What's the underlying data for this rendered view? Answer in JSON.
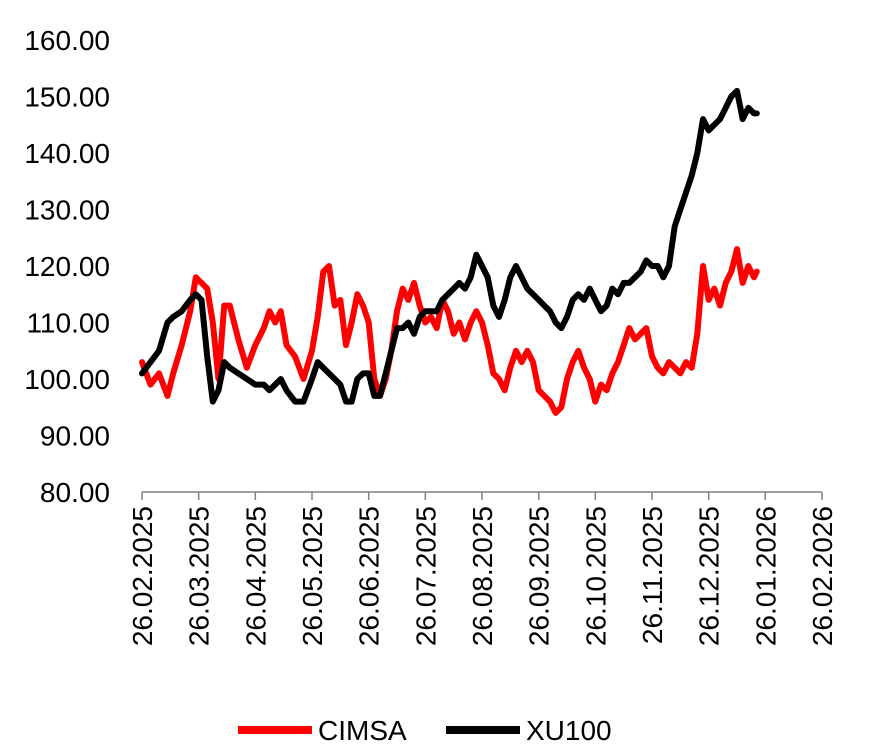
{
  "chart_data": {
    "type": "line",
    "title": "",
    "xlabel": "",
    "ylabel": "",
    "ylim": [
      80,
      160
    ],
    "y_ticks": [
      "80.00",
      "90.00",
      "100.00",
      "110.00",
      "120.00",
      "130.00",
      "140.00",
      "150.00",
      "160.00"
    ],
    "x_ticks": [
      "26.02.2025",
      "26.03.2025",
      "26.04.2025",
      "26.05.2025",
      "26.06.2025",
      "26.07.2025",
      "26.08.2025",
      "26.09.2025",
      "26.10.2025",
      "26.11.2025",
      "26.12.2025",
      "26.01.2026",
      "26.02.2026"
    ],
    "grid": false,
    "legend_position": "bottom",
    "series": [
      {
        "name": "CIMSA",
        "color": "#ff0000",
        "points": [
          [
            0,
            103
          ],
          [
            0.15,
            99
          ],
          [
            0.3,
            101
          ],
          [
            0.45,
            97
          ],
          [
            0.55,
            101
          ],
          [
            0.7,
            106
          ],
          [
            0.85,
            112
          ],
          [
            0.95,
            118
          ],
          [
            1.05,
            117
          ],
          [
            1.15,
            116
          ],
          [
            1.25,
            110
          ],
          [
            1.35,
            100
          ],
          [
            1.45,
            113
          ],
          [
            1.55,
            113
          ],
          [
            1.7,
            107
          ],
          [
            1.85,
            102
          ],
          [
            2.0,
            106
          ],
          [
            2.15,
            109
          ],
          [
            2.25,
            112
          ],
          [
            2.35,
            110
          ],
          [
            2.45,
            112
          ],
          [
            2.55,
            106
          ],
          [
            2.7,
            104
          ],
          [
            2.85,
            100
          ],
          [
            3.0,
            105
          ],
          [
            3.1,
            111
          ],
          [
            3.2,
            119
          ],
          [
            3.3,
            120
          ],
          [
            3.4,
            113
          ],
          [
            3.5,
            114
          ],
          [
            3.6,
            106
          ],
          [
            3.7,
            110
          ],
          [
            3.8,
            115
          ],
          [
            3.9,
            113
          ],
          [
            4.0,
            110
          ],
          [
            4.1,
            100
          ],
          [
            4.2,
            97
          ],
          [
            4.3,
            100
          ],
          [
            4.4,
            105
          ],
          [
            4.5,
            112
          ],
          [
            4.6,
            116
          ],
          [
            4.7,
            114
          ],
          [
            4.8,
            117
          ],
          [
            4.9,
            113
          ],
          [
            5.0,
            110
          ],
          [
            5.1,
            111
          ],
          [
            5.2,
            109
          ],
          [
            5.3,
            114
          ],
          [
            5.4,
            112
          ],
          [
            5.5,
            108
          ],
          [
            5.6,
            110
          ],
          [
            5.7,
            107
          ],
          [
            5.8,
            110
          ],
          [
            5.9,
            112
          ],
          [
            6.0,
            110
          ],
          [
            6.1,
            106
          ],
          [
            6.2,
            101
          ],
          [
            6.3,
            100
          ],
          [
            6.4,
            98
          ],
          [
            6.5,
            102
          ],
          [
            6.6,
            105
          ],
          [
            6.7,
            103
          ],
          [
            6.8,
            105
          ],
          [
            6.9,
            103
          ],
          [
            7.0,
            98
          ],
          [
            7.1,
            97
          ],
          [
            7.2,
            96
          ],
          [
            7.3,
            94
          ],
          [
            7.4,
            95
          ],
          [
            7.5,
            100
          ],
          [
            7.6,
            103
          ],
          [
            7.7,
            105
          ],
          [
            7.8,
            102
          ],
          [
            7.9,
            100
          ],
          [
            8.0,
            96
          ],
          [
            8.1,
            99
          ],
          [
            8.2,
            98
          ],
          [
            8.3,
            101
          ],
          [
            8.4,
            103
          ],
          [
            8.5,
            106
          ],
          [
            8.6,
            109
          ],
          [
            8.7,
            107
          ],
          [
            8.8,
            108
          ],
          [
            8.9,
            109
          ],
          [
            9.0,
            104
          ],
          [
            9.1,
            102
          ],
          [
            9.2,
            101
          ],
          [
            9.3,
            103
          ],
          [
            9.4,
            102
          ],
          [
            9.5,
            101
          ],
          [
            9.6,
            103
          ],
          [
            9.7,
            102
          ],
          [
            9.8,
            108
          ],
          [
            9.9,
            120
          ],
          [
            10.0,
            114
          ],
          [
            10.1,
            116
          ],
          [
            10.2,
            113
          ],
          [
            10.3,
            117
          ],
          [
            10.4,
            119
          ],
          [
            10.5,
            123
          ],
          [
            10.6,
            117
          ],
          [
            10.7,
            120
          ],
          [
            10.8,
            118
          ],
          [
            10.85,
            119
          ]
        ]
      },
      {
        "name": "XU100",
        "color": "#000000",
        "points": [
          [
            0,
            101
          ],
          [
            0.15,
            103
          ],
          [
            0.3,
            105
          ],
          [
            0.45,
            110
          ],
          [
            0.55,
            111
          ],
          [
            0.7,
            112
          ],
          [
            0.85,
            114
          ],
          [
            0.95,
            115
          ],
          [
            1.05,
            114
          ],
          [
            1.15,
            104
          ],
          [
            1.25,
            96
          ],
          [
            1.35,
            98
          ],
          [
            1.45,
            103
          ],
          [
            1.55,
            102
          ],
          [
            1.7,
            101
          ],
          [
            1.85,
            100
          ],
          [
            2.0,
            99
          ],
          [
            2.15,
            99
          ],
          [
            2.25,
            98
          ],
          [
            2.35,
            99
          ],
          [
            2.45,
            100
          ],
          [
            2.55,
            98
          ],
          [
            2.7,
            96
          ],
          [
            2.85,
            96
          ],
          [
            3.0,
            100
          ],
          [
            3.1,
            103
          ],
          [
            3.2,
            102
          ],
          [
            3.3,
            101
          ],
          [
            3.4,
            100
          ],
          [
            3.5,
            99
          ],
          [
            3.6,
            96
          ],
          [
            3.7,
            96
          ],
          [
            3.8,
            100
          ],
          [
            3.9,
            101
          ],
          [
            4.0,
            101
          ],
          [
            4.1,
            97
          ],
          [
            4.2,
            97
          ],
          [
            4.3,
            101
          ],
          [
            4.4,
            105
          ],
          [
            4.5,
            109
          ],
          [
            4.6,
            109
          ],
          [
            4.7,
            110
          ],
          [
            4.8,
            108
          ],
          [
            4.9,
            111
          ],
          [
            5.0,
            112
          ],
          [
            5.1,
            112
          ],
          [
            5.2,
            112
          ],
          [
            5.3,
            114
          ],
          [
            5.4,
            115
          ],
          [
            5.5,
            116
          ],
          [
            5.6,
            117
          ],
          [
            5.7,
            116
          ],
          [
            5.8,
            118
          ],
          [
            5.9,
            122
          ],
          [
            6.0,
            120
          ],
          [
            6.1,
            118
          ],
          [
            6.2,
            113
          ],
          [
            6.3,
            111
          ],
          [
            6.4,
            114
          ],
          [
            6.5,
            118
          ],
          [
            6.6,
            120
          ],
          [
            6.7,
            118
          ],
          [
            6.8,
            116
          ],
          [
            6.9,
            115
          ],
          [
            7.0,
            114
          ],
          [
            7.1,
            113
          ],
          [
            7.2,
            112
          ],
          [
            7.3,
            110
          ],
          [
            7.4,
            109
          ],
          [
            7.5,
            111
          ],
          [
            7.6,
            114
          ],
          [
            7.7,
            115
          ],
          [
            7.8,
            114
          ],
          [
            7.9,
            116
          ],
          [
            8.0,
            114
          ],
          [
            8.1,
            112
          ],
          [
            8.2,
            113
          ],
          [
            8.3,
            116
          ],
          [
            8.4,
            115
          ],
          [
            8.5,
            117
          ],
          [
            8.6,
            117
          ],
          [
            8.7,
            118
          ],
          [
            8.8,
            119
          ],
          [
            8.9,
            121
          ],
          [
            9.0,
            120
          ],
          [
            9.1,
            120
          ],
          [
            9.2,
            118
          ],
          [
            9.3,
            120
          ],
          [
            9.4,
            127
          ],
          [
            9.5,
            130
          ],
          [
            9.6,
            133
          ],
          [
            9.7,
            136
          ],
          [
            9.8,
            140
          ],
          [
            9.9,
            146
          ],
          [
            10.0,
            144
          ],
          [
            10.1,
            145
          ],
          [
            10.2,
            146
          ],
          [
            10.3,
            148
          ],
          [
            10.4,
            150
          ],
          [
            10.5,
            151
          ],
          [
            10.6,
            146
          ],
          [
            10.7,
            148
          ],
          [
            10.8,
            147
          ],
          [
            10.85,
            147
          ]
        ]
      }
    ]
  }
}
